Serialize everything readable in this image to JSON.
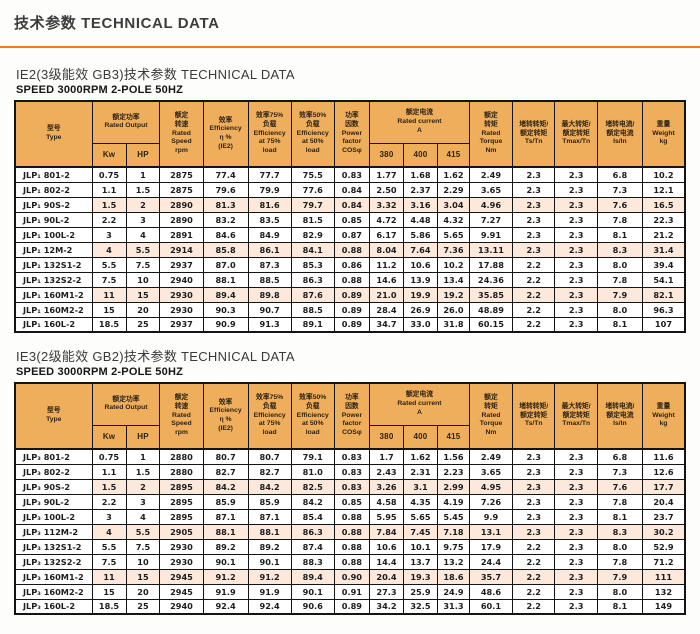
{
  "page": {
    "title": "技术参数  TECHNICAL DATA",
    "accent_color": "#e97e1d",
    "header_bg": "#eeae5c",
    "highlight_bg": "#fce9dc"
  },
  "header": {
    "type": "型号\nType",
    "rated_output": "额定功率\nRated  Output",
    "kw": "Kw",
    "hp": "HP",
    "rated_speed": "额定\n转速\nRated\nSpeed\nrpm",
    "efficiency": "效率\nEfficiency\nη %\n(IE2)",
    "eff75": "效率75%\n负载\nEfficiency\nat 75%\nload",
    "eff50": "效率50%\n负载\nEfficiency\nat 50%\nload",
    "power_factor": "功率\n因数\nPower\nfactor\nCOSφ",
    "rated_current": "额定电流\nRated  current\nA",
    "v380": "380",
    "v400": "400",
    "v415": "415",
    "rated_torque": "额定\n转矩\nRated\nTorque\nNm",
    "ts_tn": "堵转转矩/\n额定转矩\nTs/Tn",
    "tmax_tn": "最大转矩/\n额定转矩\nTmax/Tn",
    "is_in": "堵转电流/\n额定电流\nIs/In",
    "weight": "重量\nWeight\nkg"
  },
  "tables": [
    {
      "title": "IE2(3级能效 GB3)技术参数  TECHNICAL DATA",
      "subtitle": "SPEED 3000RPM  2-POLE 50HZ",
      "rows": [
        {
          "highlight": false,
          "cells": [
            "JLP₁ 801-2",
            "0.75",
            "1",
            "2875",
            "77.4",
            "77.7",
            "75.5",
            "0.83",
            "1.77",
            "1.68",
            "1.62",
            "2.49",
            "2.3",
            "2.3",
            "6.8",
            "10.2"
          ]
        },
        {
          "highlight": false,
          "cells": [
            "JLP₁ 802-2",
            "1.1",
            "1.5",
            "2875",
            "79.6",
            "79.9",
            "77.6",
            "0.84",
            "2.50",
            "2.37",
            "2.29",
            "3.65",
            "2.3",
            "2.3",
            "7.3",
            "12.1"
          ]
        },
        {
          "highlight": true,
          "cells": [
            "JLP₁ 90S-2",
            "1.5",
            "2",
            "2890",
            "81.3",
            "81.6",
            "79.7",
            "0.84",
            "3.32",
            "3.16",
            "3.04",
            "4.96",
            "2.3",
            "2.3",
            "7.6",
            "16.5"
          ]
        },
        {
          "highlight": false,
          "cells": [
            "JLP₁ 90L-2",
            "2.2",
            "3",
            "2890",
            "83.2",
            "83.5",
            "81.5",
            "0.85",
            "4.72",
            "4.48",
            "4.32",
            "7.27",
            "2.3",
            "2.3",
            "7.8",
            "22.3"
          ]
        },
        {
          "highlight": false,
          "cells": [
            "JLP₁ 100L-2",
            "3",
            "4",
            "2891",
            "84.6",
            "84.9",
            "82.9",
            "0.87",
            "6.17",
            "5.86",
            "5.65",
            "9.91",
            "2.3",
            "2.3",
            "8.1",
            "21.2"
          ]
        },
        {
          "highlight": true,
          "cells": [
            "JLP₁ 12M-2",
            "4",
            "5.5",
            "2914",
            "85.8",
            "86.1",
            "84.1",
            "0.88",
            "8.04",
            "7.64",
            "7.36",
            "13.11",
            "2.3",
            "2.3",
            "8.3",
            "31.4"
          ]
        },
        {
          "highlight": false,
          "cells": [
            "JLP₁ 132S1-2",
            "5.5",
            "7.5",
            "2937",
            "87.0",
            "87.3",
            "85.3",
            "0.86",
            "11.2",
            "10.6",
            "10.2",
            "17.88",
            "2.2",
            "2.3",
            "8.0",
            "39.4"
          ]
        },
        {
          "highlight": false,
          "cells": [
            "JLP₁ 132S2-2",
            "7.5",
            "10",
            "2940",
            "88.1",
            "88.5",
            "86.3",
            "0.88",
            "14.6",
            "13.9",
            "13.4",
            "24.36",
            "2.2",
            "2.3",
            "7.8",
            "54.1"
          ]
        },
        {
          "highlight": true,
          "cells": [
            "JLP₁ 160M1-2",
            "11",
            "15",
            "2930",
            "89.4",
            "89.8",
            "87.6",
            "0.89",
            "21.0",
            "19.9",
            "19.2",
            "35.85",
            "2.2",
            "2.3",
            "7.9",
            "82.1"
          ]
        },
        {
          "highlight": false,
          "cells": [
            "JLP₁ 160M2-2",
            "15",
            "20",
            "2930",
            "90.3",
            "90.7",
            "88.5",
            "0.89",
            "28.4",
            "26.9",
            "26.0",
            "48.89",
            "2.2",
            "2.3",
            "8.0",
            "96.3"
          ]
        },
        {
          "highlight": false,
          "cells": [
            "JLP₁ 160L-2",
            "18.5",
            "25",
            "2937",
            "90.9",
            "91.3",
            "89.1",
            "0.89",
            "34.7",
            "33.0",
            "31.8",
            "60.15",
            "2.2",
            "2.3",
            "8.1",
            "107"
          ]
        }
      ]
    },
    {
      "title": "IE3(2级能效 GB2)技术参数  TECHNICAL DATA",
      "subtitle": "SPEED 3000RPM  2-POLE 50HZ",
      "rows": [
        {
          "highlight": false,
          "cells": [
            "JLP₃ 801-2",
            "0.75",
            "1",
            "2880",
            "80.7",
            "80.7",
            "79.1",
            "0.83",
            "1.7",
            "1.62",
            "1.56",
            "2.49",
            "2.3",
            "2.3",
            "6.8",
            "11.6"
          ]
        },
        {
          "highlight": false,
          "cells": [
            "JLP₃ 802-2",
            "1.1",
            "1.5",
            "2880",
            "82.7",
            "82.7",
            "81.0",
            "0.83",
            "2.43",
            "2.31",
            "2.23",
            "3.65",
            "2.3",
            "2.3",
            "7.3",
            "12.6"
          ]
        },
        {
          "highlight": true,
          "cells": [
            "JLP₃ 90S-2",
            "1.5",
            "2",
            "2895",
            "84.2",
            "84.2",
            "82.5",
            "0.83",
            "3.26",
            "3.1",
            "2.99",
            "4.95",
            "2.3",
            "2.3",
            "7.6",
            "17.7"
          ]
        },
        {
          "highlight": false,
          "cells": [
            "JLP₃ 90L-2",
            "2.2",
            "3",
            "2895",
            "85.9",
            "85.9",
            "84.2",
            "0.85",
            "4.58",
            "4.35",
            "4.19",
            "7.26",
            "2.3",
            "2.3",
            "7.8",
            "20.4"
          ]
        },
        {
          "highlight": false,
          "cells": [
            "JLP₃ 100L-2",
            "3",
            "4",
            "2895",
            "87.1",
            "87.1",
            "85.4",
            "0.88",
            "5.95",
            "5.65",
            "5.45",
            "9.9",
            "2.3",
            "2.3",
            "8.1",
            "23.7"
          ]
        },
        {
          "highlight": true,
          "cells": [
            "JLP₃ 112M-2",
            "4",
            "5.5",
            "2905",
            "88.1",
            "88.1",
            "86.3",
            "0.88",
            "7.84",
            "7.45",
            "7.18",
            "13.1",
            "2.3",
            "2.3",
            "8.3",
            "30.2"
          ]
        },
        {
          "highlight": false,
          "cells": [
            "JLP₃ 132S1-2",
            "5.5",
            "7.5",
            "2930",
            "89.2",
            "89.2",
            "87.4",
            "0.88",
            "10.6",
            "10.1",
            "9.75",
            "17.9",
            "2.2",
            "2.3",
            "8.0",
            "52.9"
          ]
        },
        {
          "highlight": false,
          "cells": [
            "JLP₃ 132S2-2",
            "7.5",
            "10",
            "2930",
            "90.1",
            "90.1",
            "88.3",
            "0.88",
            "14.4",
            "13.7",
            "13.2",
            "24.4",
            "2.2",
            "2.3",
            "7.8",
            "71.2"
          ]
        },
        {
          "highlight": true,
          "cells": [
            "JLP₃ 160M1-2",
            "11",
            "15",
            "2945",
            "91.2",
            "91.2",
            "89.4",
            "0.90",
            "20.4",
            "19.3",
            "18.6",
            "35.7",
            "2.2",
            "2.3",
            "7.9",
            "111"
          ]
        },
        {
          "highlight": false,
          "cells": [
            "JLP₃ 160M2-2",
            "15",
            "20",
            "2945",
            "91.9",
            "91.9",
            "90.1",
            "0.91",
            "27.3",
            "25.9",
            "24.9",
            "48.6",
            "2.2",
            "2.3",
            "8.0",
            "132"
          ]
        },
        {
          "highlight": false,
          "cells": [
            "JLP₃ 160L-2",
            "18.5",
            "25",
            "2940",
            "92.4",
            "92.4",
            "90.6",
            "0.89",
            "34.2",
            "32.5",
            "31.3",
            "60.1",
            "2.2",
            "2.3",
            "8.1",
            "149"
          ]
        }
      ]
    }
  ]
}
